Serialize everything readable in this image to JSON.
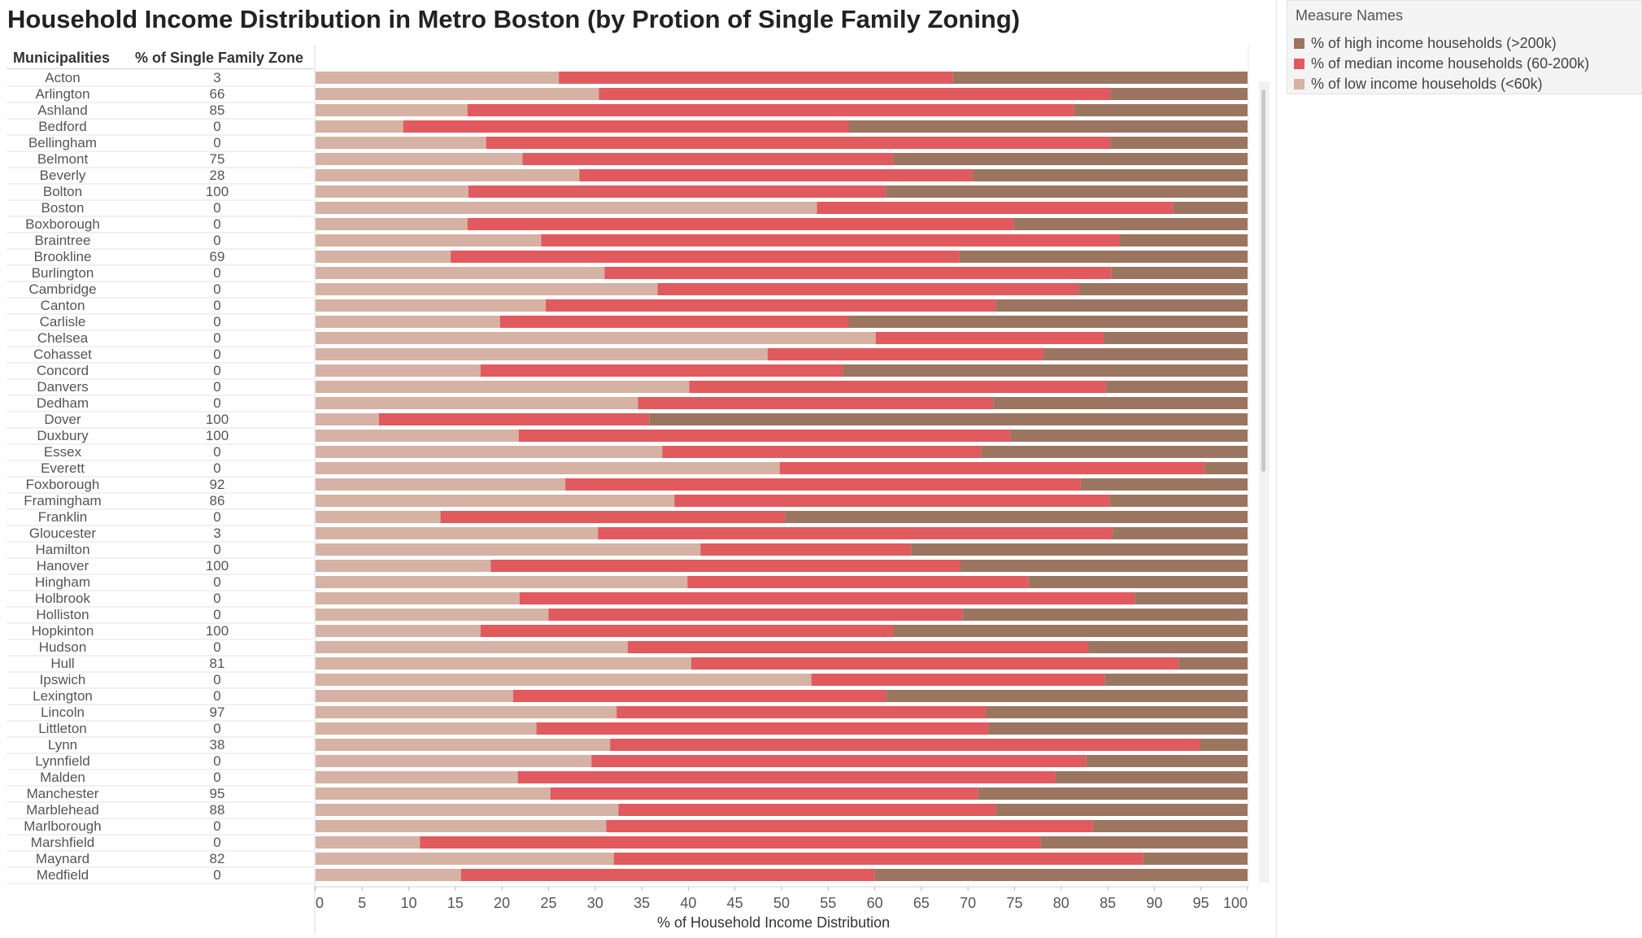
{
  "title": "Household Income Distribution in Metro Boston (by Protion of Single Family Zoning)",
  "headers": {
    "municipalities": "Municipalities",
    "zone": "% of Single Family Zone"
  },
  "legend": {
    "title": "Measure Names",
    "items": [
      {
        "label": "% of high income households (>200k)",
        "color": "#9b7560"
      },
      {
        "label": "% of median income households (60-200k)",
        "color": "#e05a5e"
      },
      {
        "label": "% of low income households (<60k)",
        "color": "#d5b2a4"
      }
    ]
  },
  "chart_data": {
    "type": "bar",
    "orientation": "horizontal",
    "stacked": true,
    "title": "Household Income Distribution in Metro Boston (by Protion of Single Family Zoning)",
    "xlabel": "% of Household Income Distribution",
    "xlim": [
      0,
      100
    ],
    "xticks": [
      0,
      5,
      10,
      15,
      20,
      25,
      30,
      35,
      40,
      45,
      50,
      55,
      60,
      65,
      70,
      75,
      80,
      85,
      90,
      95,
      100
    ],
    "categories": [
      "Acton",
      "Arlington",
      "Ashland",
      "Bedford",
      "Bellingham",
      "Belmont",
      "Beverly",
      "Bolton",
      "Boston",
      "Boxborough",
      "Braintree",
      "Brookline",
      "Burlington",
      "Cambridge",
      "Canton",
      "Carlisle",
      "Chelsea",
      "Cohasset",
      "Concord",
      "Danvers",
      "Dedham",
      "Dover",
      "Duxbury",
      "Essex",
      "Everett",
      "Foxborough",
      "Framingham",
      "Franklin",
      "Gloucester",
      "Hamilton",
      "Hanover",
      "Hingham",
      "Holbrook",
      "Holliston",
      "Hopkinton",
      "Hudson",
      "Hull",
      "Ipswich",
      "Lexington",
      "Lincoln",
      "Littleton",
      "Lynn",
      "Lynnfield",
      "Malden",
      "Manchester",
      "Marblehead",
      "Marlborough",
      "Marshfield",
      "Maynard",
      "Medfield"
    ],
    "single_family_zone_pct": [
      3,
      66,
      85,
      0,
      0,
      75,
      28,
      100,
      0,
      0,
      0,
      69,
      0,
      0,
      0,
      0,
      0,
      0,
      0,
      0,
      0,
      100,
      100,
      0,
      0,
      92,
      86,
      0,
      3,
      0,
      100,
      0,
      0,
      0,
      100,
      0,
      81,
      0,
      0,
      97,
      0,
      38,
      0,
      0,
      95,
      88,
      0,
      0,
      82,
      0
    ],
    "series": [
      {
        "name": "% of low income households (<60k)",
        "color": "#d5b2a4",
        "values": [
          26.1,
          30.4,
          16.3,
          9.4,
          18.3,
          22.2,
          28.3,
          16.4,
          53.8,
          16.3,
          24.2,
          14.5,
          31.0,
          36.7,
          24.7,
          19.8,
          60.1,
          48.5,
          17.7,
          40.1,
          34.6,
          6.8,
          21.8,
          37.2,
          49.8,
          26.8,
          38.5,
          13.4,
          30.3,
          41.3,
          18.8,
          39.9,
          21.9,
          25.0,
          17.7,
          33.5,
          40.3,
          53.2,
          21.2,
          32.3,
          23.7,
          31.6,
          29.6,
          21.7,
          25.2,
          32.5,
          31.2,
          11.2,
          32.0,
          15.6
        ]
      },
      {
        "name": "% of median income households (60-200k)",
        "color": "#e05a5e",
        "values": [
          42.3,
          54.9,
          65.1,
          47.8,
          67.0,
          39.8,
          42.2,
          44.8,
          38.2,
          58.6,
          62.1,
          54.6,
          54.4,
          45.2,
          48.3,
          37.4,
          24.5,
          29.6,
          38.9,
          44.7,
          38.1,
          29.0,
          52.8,
          34.2,
          45.6,
          55.3,
          46.7,
          37.0,
          55.2,
          22.6,
          50.4,
          36.6,
          66.0,
          44.4,
          44.3,
          49.4,
          52.3,
          31.5,
          40.0,
          39.6,
          48.5,
          63.3,
          53.1,
          57.7,
          45.9,
          40.5,
          52.2,
          66.6,
          56.8,
          44.4
        ]
      },
      {
        "name": "% of high income households (>200k)",
        "color": "#9b7560",
        "values": [
          31.6,
          14.7,
          18.6,
          42.8,
          14.7,
          38.0,
          29.5,
          38.8,
          8.0,
          25.1,
          13.7,
          30.9,
          14.6,
          18.1,
          27.0,
          42.8,
          15.4,
          21.9,
          43.4,
          15.2,
          27.3,
          64.2,
          25.4,
          28.6,
          4.6,
          17.9,
          14.8,
          49.6,
          14.5,
          36.1,
          30.8,
          23.5,
          12.1,
          30.6,
          38.0,
          17.1,
          7.4,
          15.3,
          38.8,
          28.1,
          27.8,
          5.1,
          17.3,
          20.6,
          28.9,
          27.0,
          16.6,
          22.2,
          11.2,
          40.0
        ]
      }
    ]
  }
}
